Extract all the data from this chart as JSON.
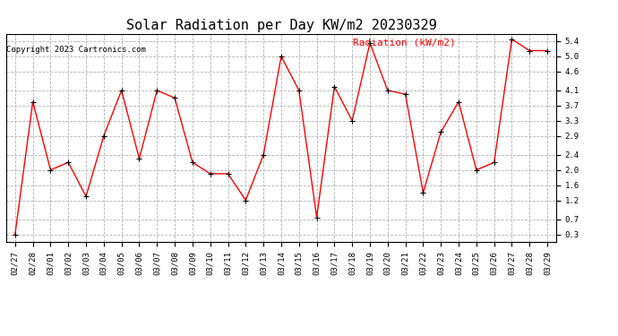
{
  "title": "Solar Radiation per Day KW/m2 20230329",
  "copyright": "Copyright 2023 Cartronics.com",
  "legend_label": "Radiation (kW/m2)",
  "dates": [
    "02/27",
    "02/28",
    "03/01",
    "03/02",
    "03/03",
    "03/04",
    "03/05",
    "03/06",
    "03/07",
    "03/08",
    "03/09",
    "03/10",
    "03/11",
    "03/12",
    "03/13",
    "03/14",
    "03/15",
    "03/16",
    "03/17",
    "03/18",
    "03/19",
    "03/20",
    "03/21",
    "03/22",
    "03/23",
    "03/24",
    "03/25",
    "03/26",
    "03/27",
    "03/28",
    "03/29"
  ],
  "values": [
    0.3,
    3.8,
    2.0,
    2.2,
    1.3,
    2.9,
    4.1,
    2.3,
    4.1,
    3.9,
    2.2,
    1.9,
    1.9,
    1.2,
    2.4,
    5.0,
    4.1,
    0.75,
    4.2,
    3.3,
    5.35,
    4.1,
    4.0,
    1.4,
    3.0,
    3.8,
    2.0,
    2.2,
    5.45,
    5.15,
    5.15
  ],
  "ylim": [
    0.1,
    5.6
  ],
  "yticks": [
    0.3,
    0.7,
    1.2,
    1.6,
    2.0,
    2.4,
    2.9,
    3.3,
    3.7,
    4.1,
    4.6,
    5.0,
    5.4
  ],
  "line_color": "red",
  "marker_color": "black",
  "grid_color": "#aaaaaa",
  "bg_color": "white",
  "title_fontsize": 11,
  "copyright_fontsize": 6.5,
  "legend_fontsize": 8,
  "tick_fontsize": 6.5
}
